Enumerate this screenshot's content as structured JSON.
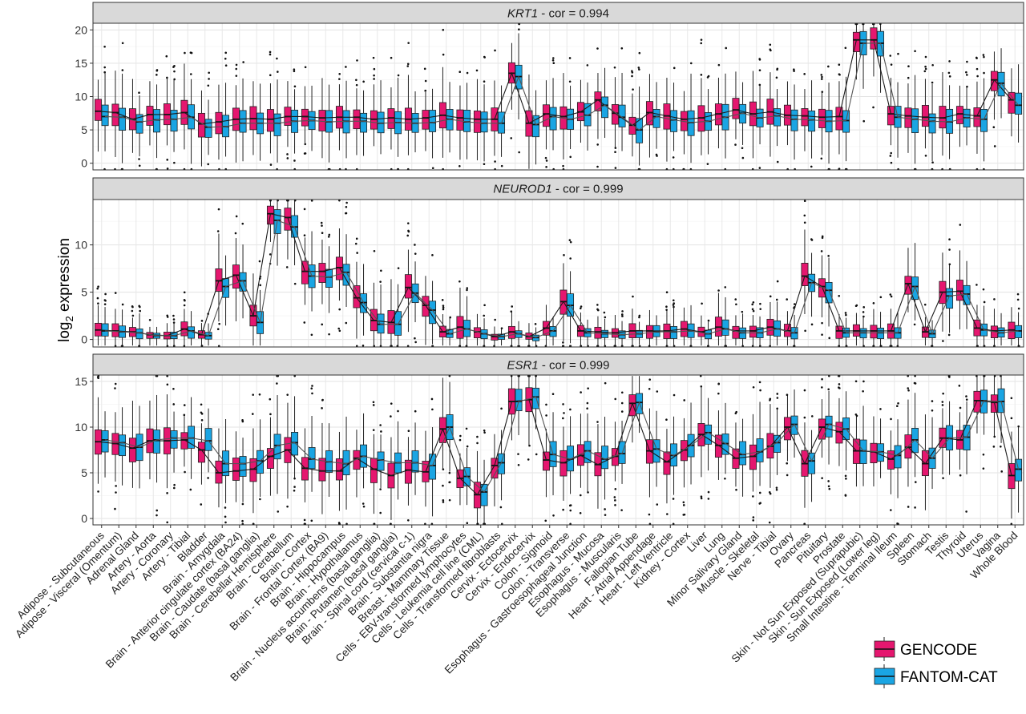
{
  "chart_data": {
    "type": "box",
    "ylabel": "log2 expression",
    "ylabel_main": "log",
    "ylabel_sub": "2",
    "ylabel_rest": " expression",
    "grid": true,
    "legend_placement": "bottom-right",
    "colors": {
      "GENCODE": "#E5176F",
      "FANTOM-CAT": "#1AA5E3"
    },
    "legend": [
      {
        "name": "GENCODE",
        "color": "#E5176F"
      },
      {
        "name": "FANTOM-CAT",
        "color": "#1AA5E3"
      }
    ],
    "categories": [
      "Adipose - Subcutaneous",
      "Adipose - Visceral (Omentum)",
      "Adrenal Gland",
      "Artery - Aorta",
      "Artery - Coronary",
      "Artery - Tibial",
      "Bladder",
      "Brain - Amygdala",
      "Brain - Anterior cingulate cortex (BA24)",
      "Brain - Caudate (basal ganglia)",
      "Brain - Cerebellar Hemisphere",
      "Brain - Cerebellum",
      "Brain - Cortex",
      "Brain - Frontal Cortex (BA9)",
      "Brain - Hippocampus",
      "Brain - Hypothalamus",
      "Brain - Nucleus accumbens (basal ganglia)",
      "Brain - Putamen (basal ganglia)",
      "Brain - Spinal cord (cervical c-1)",
      "Brain - Substantia nigra",
      "Breast - Mammary Tissue",
      "Cells - EBV-transformed lymphocytes",
      "Cells - Leukemia cell line (CML)",
      "Cells - Transformed fibroblasts",
      "Cervix - Ectocervix",
      "Cervix - Endocervix",
      "Colon - Sigmoid",
      "Colon - Transverse",
      "Esophagus - Gastroesophageal Junction",
      "Esophagus - Mucosa",
      "Esophagus - Muscularis",
      "Fallopian Tube",
      "Heart - Atrial Appendage",
      "Heart - Left Ventricle",
      "Kidney - Cortex",
      "Liver",
      "Lung",
      "Minor Salivary Gland",
      "Muscle - Skeletal",
      "Nerve - Tibial",
      "Ovary",
      "Pancreas",
      "Pituitary",
      "Prostate",
      "Skin - Not Sun Exposed (Suprapubic)",
      "Skin - Sun Exposed (Lower leg)",
      "Small Intestine - Terminal Ileum",
      "Spleen",
      "Stomach",
      "Testis",
      "Thyroid",
      "Uterus",
      "Vagina",
      "Whole Blood"
    ],
    "panels": [
      {
        "title_gene": "KRT1",
        "title_suffix": " - cor = 0.994",
        "ylim": [
          -1,
          21
        ],
        "yticks": [
          0,
          5,
          10,
          15,
          20
        ],
        "GENCODE": [
          7.8,
          7.6,
          6.6,
          7.3,
          7.3,
          7.6,
          5.9,
          6.2,
          6.6,
          6.7,
          6.6,
          7.0,
          7.0,
          6.8,
          6.9,
          6.9,
          6.6,
          6.8,
          6.6,
          6.8,
          7.2,
          6.8,
          6.6,
          6.6,
          13.5,
          6.0,
          7.4,
          7.0,
          7.7,
          9.5,
          7.5,
          5.7,
          7.6,
          7.1,
          6.6,
          6.8,
          7.4,
          8.0,
          7.4,
          7.7,
          7.2,
          7.1,
          6.9,
          7.0,
          18.5,
          18.5,
          7.4,
          7.1,
          6.9,
          6.8,
          7.4,
          7.1,
          12.5,
          9.5
        ],
        "FANTOM-CAT": [
          7.0,
          6.9,
          6.2,
          6.5,
          6.6,
          6.9,
          5.4,
          5.5,
          6.0,
          6.0,
          6.0,
          6.3,
          6.4,
          6.2,
          6.3,
          6.3,
          6.0,
          6.1,
          6.0,
          6.1,
          6.6,
          6.2,
          6.0,
          6.0,
          13.0,
          5.8,
          7.0,
          6.6,
          7.2,
          8.7,
          6.9,
          5.0,
          7.0,
          6.5,
          6.1,
          6.3,
          6.9,
          7.5,
          6.8,
          7.1,
          6.6,
          6.5,
          6.3,
          6.4,
          18.0,
          18.0,
          6.9,
          6.6,
          6.3,
          6.2,
          6.8,
          6.6,
          12.0,
          8.7
        ]
      },
      {
        "title_gene": "NEUROD1",
        "title_suffix": " - cor = 0.999",
        "ylim": [
          -0.8,
          14.8
        ],
        "yticks": [
          0,
          5,
          10
        ],
        "GENCODE": [
          1.0,
          0.9,
          0.8,
          0.5,
          0.4,
          1.1,
          0.5,
          6.2,
          6.8,
          2.5,
          13.3,
          12.9,
          7.2,
          7.2,
          7.6,
          4.4,
          2.0,
          1.8,
          5.5,
          3.6,
          0.8,
          1.3,
          0.8,
          0.3,
          0.8,
          0.3,
          1.2,
          4.0,
          0.9,
          0.8,
          0.7,
          0.9,
          0.9,
          0.9,
          1.1,
          0.8,
          1.3,
          0.9,
          0.9,
          1.3,
          0.9,
          6.7,
          5.6,
          0.9,
          0.9,
          0.9,
          0.9,
          5.9,
          0.8,
          5.0,
          5.1,
          1.2,
          0.9,
          1.0
        ],
        "FANTOM-CAT": [
          0.9,
          0.8,
          0.7,
          0.4,
          0.4,
          0.9,
          0.4,
          5.6,
          6.2,
          1.8,
          12.6,
          11.9,
          6.7,
          6.6,
          7.1,
          3.9,
          1.6,
          1.6,
          4.9,
          3.1,
          0.6,
          1.1,
          0.6,
          0.3,
          0.6,
          0.2,
          0.9,
          3.6,
          0.7,
          0.6,
          0.5,
          0.6,
          0.8,
          0.8,
          0.9,
          0.6,
          1.1,
          0.7,
          0.7,
          1.1,
          0.7,
          6.0,
          5.2,
          0.7,
          0.7,
          0.7,
          0.7,
          5.6,
          0.6,
          4.6,
          4.8,
          1.0,
          0.7,
          0.9
        ]
      },
      {
        "title_gene": "ESR1",
        "title_suffix": " - cor = 0.999",
        "ylim": [
          -0.7,
          15.7
        ],
        "yticks": [
          0,
          5,
          10,
          15
        ],
        "GENCODE": [
          8.4,
          8.2,
          7.7,
          8.5,
          8.5,
          8.6,
          7.5,
          5.0,
          5.2,
          5.4,
          6.8,
          7.5,
          5.5,
          5.2,
          5.2,
          6.6,
          5.4,
          4.7,
          5.3,
          5.1,
          9.8,
          4.4,
          2.6,
          5.8,
          12.8,
          13.0,
          6.4,
          6.1,
          6.9,
          5.9,
          6.8,
          12.6,
          7.4,
          6.2,
          7.5,
          9.2,
          8.0,
          6.6,
          6.8,
          7.9,
          10.0,
          6.0,
          10.0,
          9.5,
          7.4,
          7.3,
          6.5,
          7.8,
          6.0,
          8.8,
          8.6,
          12.9,
          12.7,
          4.7
        ],
        "FANTOM-CAT": [
          8.6,
          8.3,
          7.8,
          8.6,
          8.8,
          8.8,
          8.5,
          6.0,
          6.0,
          6.3,
          8.0,
          8.3,
          6.5,
          6.2,
          6.0,
          6.8,
          6.4,
          6.1,
          6.1,
          5.8,
          10.0,
          4.6,
          2.9,
          6.1,
          12.8,
          13.3,
          7.0,
          6.5,
          7.4,
          6.5,
          7.1,
          12.7,
          7.6,
          6.9,
          8.0,
          9.4,
          8.2,
          7.0,
          7.3,
          8.3,
          10.3,
          6.3,
          10.3,
          9.8,
          7.4,
          7.3,
          6.9,
          8.6,
          6.6,
          8.8,
          8.9,
          12.9,
          12.8,
          5.4
        ]
      }
    ]
  }
}
